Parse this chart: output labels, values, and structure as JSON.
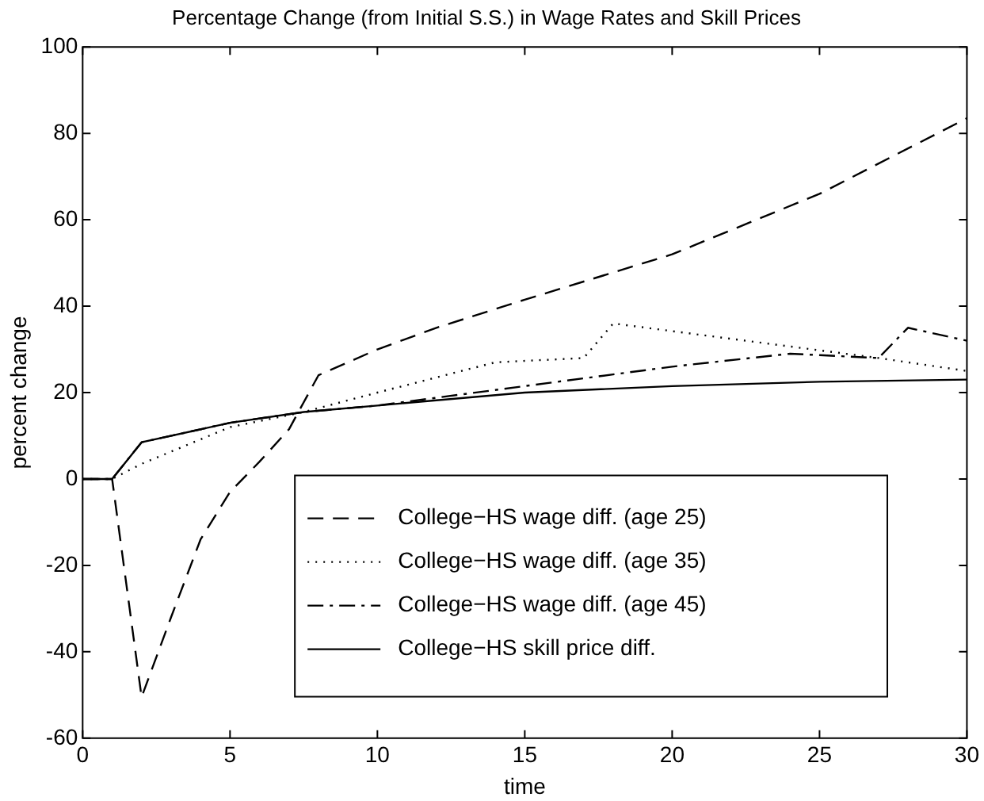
{
  "chart_data": {
    "type": "line",
    "title": "Percentage Change (from Initial S.S.) in Wage Rates and Skill Prices",
    "xlabel": "time",
    "ylabel": "percent change",
    "xlim": [
      0,
      30
    ],
    "xticks": [
      0,
      5,
      10,
      15,
      20,
      25,
      30
    ],
    "ylim": [
      -60,
      100
    ],
    "yticks": [
      -60,
      -40,
      -20,
      0,
      20,
      40,
      60,
      80,
      100
    ],
    "grid": false,
    "legend": "bottom",
    "marker": "none",
    "series": [
      {
        "name": "College−HS wage diff. (age 25)",
        "color": "#000000",
        "line_style": "dashed",
        "x": [
          0,
          1,
          2,
          3,
          4,
          5,
          6,
          7,
          8,
          10,
          12,
          15,
          20,
          25,
          30
        ],
        "values": [
          0,
          0,
          -50.5,
          -32,
          -14,
          -3,
          4,
          11.5,
          24,
          30,
          35,
          41.5,
          52,
          66,
          83.5
        ]
      },
      {
        "name": "College−HS wage diff. (age 35)",
        "color": "#000000",
        "line_style": "dotted",
        "x": [
          0,
          1,
          2,
          5,
          7.5,
          10,
          14,
          17,
          18,
          27,
          30
        ],
        "values": [
          0,
          0,
          3.5,
          12,
          15.5,
          20,
          27,
          28,
          36,
          28,
          25
        ]
      },
      {
        "name": "College−HS wage diff. (age 45)",
        "color": "#000000",
        "line_style": "dashdot",
        "x": [
          0,
          1,
          2,
          5,
          7.5,
          10,
          15,
          20,
          24,
          27,
          28,
          30
        ],
        "values": [
          0,
          0,
          8.5,
          13,
          15.5,
          17,
          21.5,
          26,
          29,
          28,
          35,
          32
        ]
      },
      {
        "name": "College−HS skill price diff.",
        "color": "#000000",
        "line_style": "solid",
        "x": [
          0,
          1,
          2,
          5,
          7.5,
          10,
          15,
          20,
          25,
          30
        ],
        "values": [
          0,
          0,
          8.5,
          13,
          15.5,
          17,
          20,
          21.5,
          22.5,
          23
        ]
      }
    ]
  }
}
